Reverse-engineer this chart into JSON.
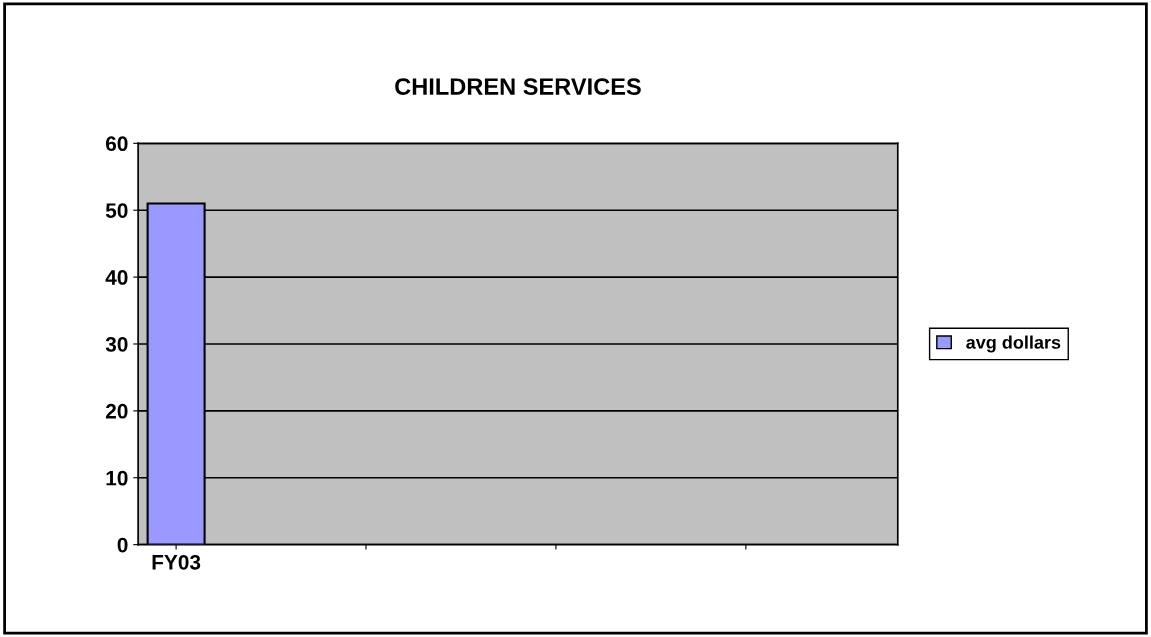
{
  "chart_data": {
    "type": "bar",
    "title": "CHILDREN SERVICES",
    "categories": [
      "FY03",
      null,
      null,
      null
    ],
    "series": [
      {
        "name": "avg dollars",
        "color": "#9999ff",
        "values": [
          51,
          null,
          null,
          null
        ]
      }
    ],
    "ylim": [
      0,
      60
    ],
    "yticks": [
      0,
      10,
      20,
      30,
      40,
      50,
      60
    ],
    "grid": "y",
    "legend": "right"
  }
}
